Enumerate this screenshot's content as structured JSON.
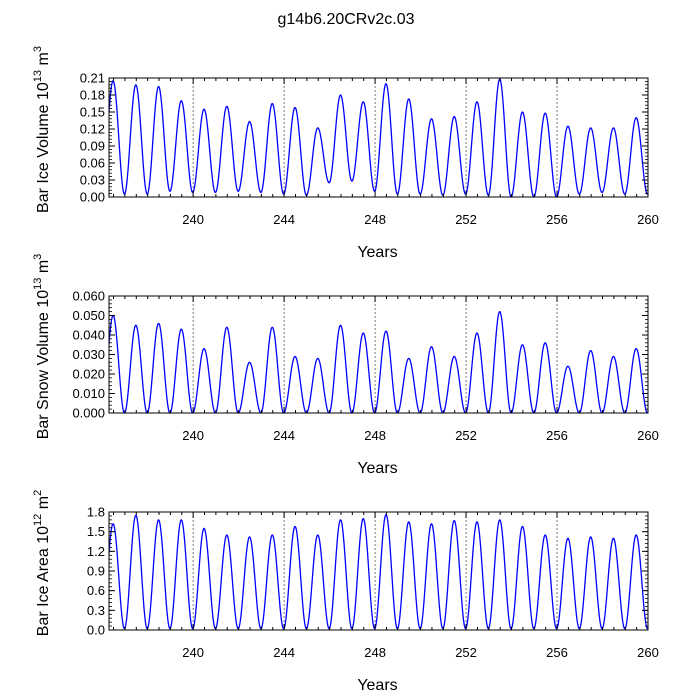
{
  "title": "g14b6.20CRv2c.03",
  "chart_data": [
    {
      "type": "line",
      "xlabel": "Years",
      "ylabel": "Bar Ice Volume 10",
      "ylabel_exp": "13",
      "ylabel_unit": " m",
      "ylabel_unit_exp": "3",
      "xlim": [
        236.3,
        260
      ],
      "ylim": [
        0,
        0.21
      ],
      "xticks": [
        240,
        244,
        248,
        252,
        256,
        260
      ],
      "yticks": [
        0.0,
        0.03,
        0.06,
        0.09,
        0.12,
        0.15,
        0.18,
        0.21
      ],
      "ytick_labels": [
        "0.00",
        "0.03",
        "0.06",
        "0.09",
        "0.12",
        "0.15",
        "0.18",
        "0.21"
      ],
      "yminor_step": 0.006,
      "year_markers": [
        240,
        244,
        248,
        252,
        256
      ],
      "series": [
        {
          "name": "Bar Ice Volume",
          "color": "#0000ff",
          "annual_peaks": [
            0.205,
            0.198,
            0.195,
            0.17,
            0.155,
            0.16,
            0.133,
            0.165,
            0.158,
            0.122,
            0.18,
            0.168,
            0.2,
            0.173,
            0.138,
            0.142,
            0.168,
            0.208,
            0.15,
            0.148,
            0.125,
            0.122,
            0.122,
            0.14
          ],
          "annual_minima": [
            0.015,
            0.005,
            0.005,
            0.01,
            0.008,
            0.008,
            0.01,
            0.008,
            0.005,
            0.003,
            0.025,
            0.028,
            0.01,
            0.005,
            0.005,
            0.003,
            0.005,
            0.003,
            0.0,
            0.0,
            0.0,
            0.005,
            0.008,
            0.005
          ]
        }
      ]
    },
    {
      "type": "line",
      "xlabel": "Years",
      "ylabel": "Bar Snow Volume 10",
      "ylabel_exp": "13",
      "ylabel_unit": " m",
      "ylabel_unit_exp": "3",
      "xlim": [
        236.3,
        260
      ],
      "ylim": [
        0,
        0.06
      ],
      "xticks": [
        240,
        244,
        248,
        252,
        256,
        260
      ],
      "yticks": [
        0.0,
        0.01,
        0.02,
        0.03,
        0.04,
        0.05,
        0.06
      ],
      "ytick_labels": [
        "0.000",
        "0.010",
        "0.020",
        "0.030",
        "0.040",
        "0.050",
        "0.060"
      ],
      "yminor_step": 0.002,
      "year_markers": [
        240,
        244,
        248,
        252,
        256
      ],
      "series": [
        {
          "name": "Bar Snow Volume",
          "color": "#0000ff",
          "annual_peaks": [
            0.05,
            0.045,
            0.046,
            0.043,
            0.033,
            0.044,
            0.026,
            0.044,
            0.029,
            0.028,
            0.045,
            0.041,
            0.042,
            0.028,
            0.034,
            0.029,
            0.041,
            0.052,
            0.035,
            0.036,
            0.024,
            0.032,
            0.029,
            0.033
          ],
          "annual_minima": [
            0.0,
            0.0,
            0.0,
            0.0,
            0.0,
            0.0,
            0.0,
            0.0,
            0.0,
            0.0,
            0.0,
            0.0,
            0.0,
            0.0,
            0.0,
            0.0,
            0.0,
            0.0,
            0.0,
            0.0,
            0.0,
            0.0,
            0.0,
            0.0
          ]
        }
      ]
    },
    {
      "type": "line",
      "xlabel": "Years",
      "ylabel": "Bar Ice Area 10",
      "ylabel_exp": "12",
      "ylabel_unit": " m",
      "ylabel_unit_exp": "2",
      "xlim": [
        236.3,
        260
      ],
      "ylim": [
        0,
        1.8
      ],
      "xticks": [
        240,
        244,
        248,
        252,
        256,
        260
      ],
      "yticks": [
        0.0,
        0.3,
        0.6,
        0.9,
        1.2,
        1.5,
        1.8
      ],
      "ytick_labels": [
        "0.0",
        "0.3",
        "0.6",
        "0.9",
        "1.2",
        "1.5",
        "1.8"
      ],
      "yminor_step": 0.06,
      "year_markers": [
        240,
        244,
        248,
        252,
        256
      ],
      "series": [
        {
          "name": "Bar Ice Area",
          "color": "#0000ff",
          "annual_peaks": [
            1.62,
            1.75,
            1.68,
            1.68,
            1.55,
            1.45,
            1.42,
            1.45,
            1.58,
            1.45,
            1.68,
            1.7,
            1.76,
            1.65,
            1.62,
            1.67,
            1.65,
            1.68,
            1.58,
            1.45,
            1.4,
            1.42,
            1.4,
            1.45
          ],
          "annual_minima": [
            0.05,
            0.02,
            0.02,
            0.02,
            0.02,
            0.02,
            0.02,
            0.02,
            0.02,
            0.02,
            0.02,
            0.02,
            0.02,
            0.02,
            0.02,
            0.02,
            0.02,
            0.02,
            0.02,
            0.02,
            0.02,
            0.02,
            0.02,
            0.02
          ]
        }
      ]
    }
  ]
}
